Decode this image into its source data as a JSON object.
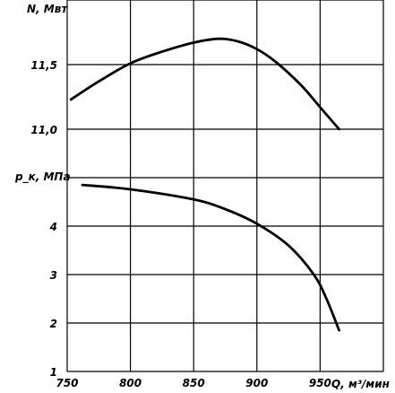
{
  "chart_data": [
    {
      "type": "line",
      "panel": "top",
      "ylabel": "N, Мвт",
      "xlim": [
        750,
        1000
      ],
      "ylim": [
        11.0,
        12.0
      ],
      "y_ticks": [
        "11,0",
        "11,5"
      ],
      "y_tick_values": [
        11.0,
        11.5
      ],
      "grid": true,
      "series": [
        {
          "x": [
            753,
            775,
            800,
            825,
            850,
            870,
            885,
            900,
            915,
            935,
            950,
            965
          ],
          "y": [
            11.23,
            11.37,
            11.51,
            11.6,
            11.67,
            11.7,
            11.68,
            11.62,
            11.52,
            11.34,
            11.17,
            11.0
          ]
        }
      ]
    },
    {
      "type": "line",
      "panel": "bottom",
      "ylabel": "p_к, МПа",
      "xlabel": "Q, м³/мин",
      "xlim": [
        750,
        1000
      ],
      "ylim": [
        1,
        5
      ],
      "x_ticks": [
        "750",
        "800",
        "850",
        "900",
        "950"
      ],
      "x_tick_values": [
        750,
        800,
        850,
        900,
        950
      ],
      "y_ticks": [
        "1",
        "2",
        "3",
        "4"
      ],
      "y_tick_values": [
        1,
        2,
        3,
        4
      ],
      "grid": true,
      "series": [
        {
          "x": [
            762,
            800,
            850,
            875,
            900,
            925,
            945,
            955,
            965
          ],
          "y": [
            4.85,
            4.76,
            4.55,
            4.35,
            4.05,
            3.6,
            3.0,
            2.5,
            1.85
          ]
        }
      ]
    }
  ]
}
